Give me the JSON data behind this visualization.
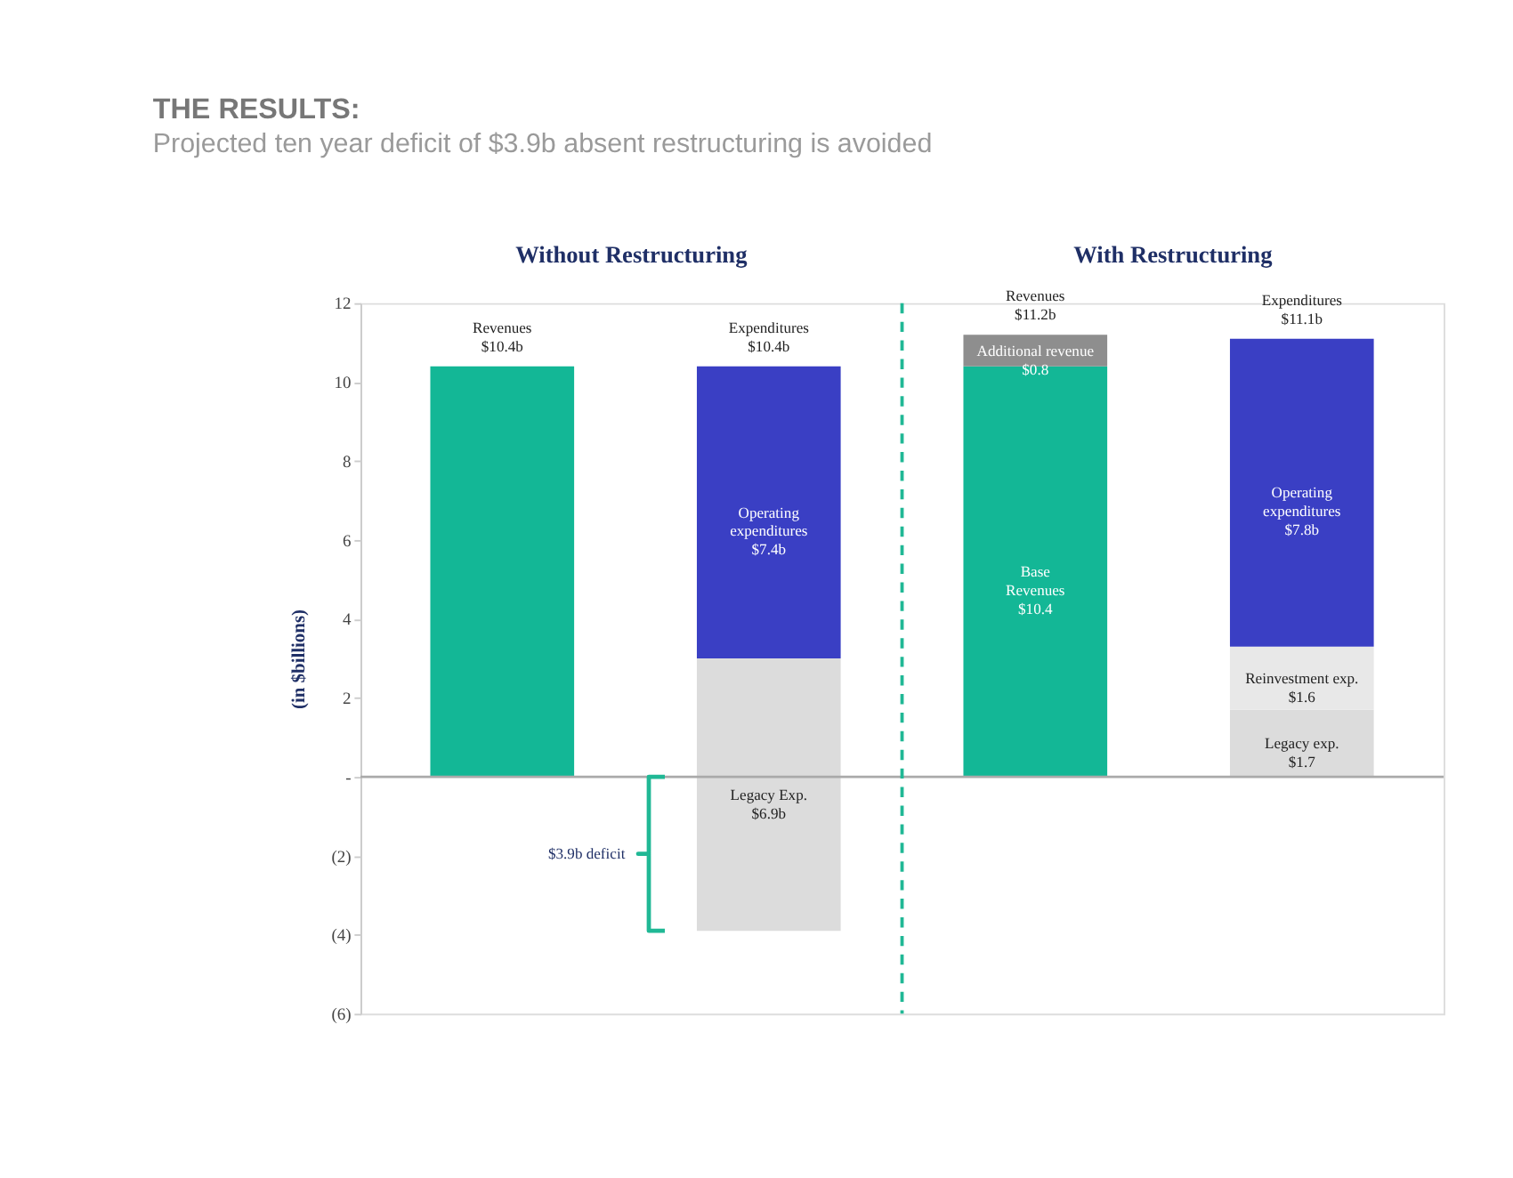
{
  "chart_data": {
    "type": "bar",
    "title": "THE RESULTS:",
    "subtitle": "Projected ten year deficit of $3.9b absent restructuring is avoided",
    "ylabel": "(in $billions)",
    "categories": [
      null,
      null,
      null,
      null
    ],
    "series": [
      {
        "color": "#13b796",
        "values": [
          10.4,
          null,
          10.4,
          null
        ],
        "base": [
          0,
          null,
          0,
          null
        ],
        "value_labels": [
          null,
          null,
          "Base\nRevenues\n$10.4",
          null
        ]
      },
      {
        "color": "#dcdcdc",
        "values": [
          null,
          6.9,
          null,
          1.7
        ],
        "base": [
          null,
          -3.9,
          null,
          0
        ],
        "value_labels": [
          null,
          "Legacy Exp.\n$6.9b",
          null,
          "Legacy exp.\n$1.7"
        ]
      },
      {
        "color": "#e8e8e8",
        "values": [
          null,
          null,
          null,
          1.6
        ],
        "base": [
          null,
          null,
          null,
          1.7
        ],
        "value_labels": [
          null,
          null,
          null,
          "Reinvestment exp.\n$1.6"
        ]
      },
      {
        "color": "#8e8e8e",
        "values": [
          null,
          null,
          0.8,
          null
        ],
        "base": [
          null,
          null,
          10.4,
          null
        ],
        "value_labels": [
          null,
          null,
          "Additional revenue\n$0.8",
          null
        ]
      },
      {
        "color": "#3a3fc4",
        "values": [
          null,
          7.4,
          null,
          7.8
        ],
        "base": [
          null,
          3.0,
          null,
          3.3
        ],
        "value_labels": [
          null,
          "Operating\nexpenditures\n$7.4b",
          null,
          "Operating\nexpenditures\n$7.8b"
        ]
      }
    ],
    "totals": [
      "Revenues\n$10.4b",
      "Expenditures\n$10.4b",
      "Revenues\n$11.2b",
      "Expenditures\n$11.1b"
    ],
    "ylim": [
      -6,
      12
    ],
    "yticks": [
      12,
      10,
      8,
      6,
      4,
      2,
      {
        "value": 0,
        "label": "-"
      },
      {
        "value": -2,
        "label": "(2)"
      },
      {
        "value": -4,
        "label": "(4)"
      },
      {
        "value": -6,
        "label": "(6)"
      }
    ],
    "ref_lines": [
      {
        "axis": "y",
        "value": 0,
        "color": "#aaaaaa",
        "line_style": "solid"
      }
    ],
    "annotations": [
      "Without Restructuring",
      "With Restructuring",
      "$3.9b deficit"
    ],
    "grid": false,
    "legend": false
  }
}
